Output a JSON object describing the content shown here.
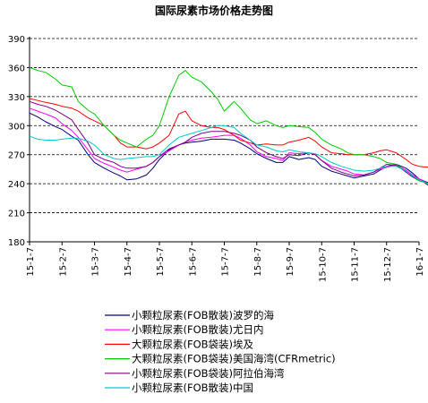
{
  "chart_data": {
    "type": "line",
    "title": "国际尿素市场价格走势图",
    "xlabel": "",
    "ylabel": "",
    "ylim": [
      180,
      390
    ],
    "yticks": [
      180,
      210,
      240,
      270,
      300,
      330,
      360,
      390
    ],
    "grid": "horizontal dashed",
    "legend_position": "bottom",
    "x_tick_labels": [
      "15-1-7",
      "15-2-7",
      "15-3-7",
      "15-4-7",
      "15-5-7",
      "15-6-7",
      "15-7-7",
      "15-8-7",
      "15-9-7",
      "15-10-7",
      "15-11-7",
      "15-12-7",
      "16-1-7"
    ],
    "series": [
      {
        "name": "小颗粒尿素(FOB散装)波罗的海",
        "color": "#000080",
        "points": [
          [
            0,
            313
          ],
          [
            0.25,
            309
          ],
          [
            0.5,
            304
          ],
          [
            0.8,
            299
          ],
          [
            1,
            296
          ],
          [
            1.3,
            289
          ],
          [
            1.5,
            285
          ],
          [
            1.8,
            270
          ],
          [
            2,
            262
          ],
          [
            2.3,
            256
          ],
          [
            2.6,
            251
          ],
          [
            2.8,
            248
          ],
          [
            3,
            244
          ],
          [
            3.3,
            245
          ],
          [
            3.6,
            249
          ],
          [
            3.8,
            256
          ],
          [
            4,
            265
          ],
          [
            4.3,
            275
          ],
          [
            4.6,
            280
          ],
          [
            4.8,
            282
          ],
          [
            5,
            283
          ],
          [
            5.3,
            284
          ],
          [
            5.6,
            286
          ],
          [
            5.8,
            286
          ],
          [
            6,
            286
          ],
          [
            6.3,
            285
          ],
          [
            6.5,
            282
          ],
          [
            6.8,
            276
          ],
          [
            7,
            271
          ],
          [
            7.3,
            266
          ],
          [
            7.6,
            262
          ],
          [
            7.8,
            262
          ],
          [
            8,
            268
          ],
          [
            8.3,
            265
          ],
          [
            8.6,
            267
          ],
          [
            8.8,
            265
          ],
          [
            9,
            258
          ],
          [
            9.3,
            253
          ],
          [
            9.6,
            250
          ],
          [
            9.8,
            248
          ],
          [
            10,
            246
          ],
          [
            10.3,
            248
          ],
          [
            10.6,
            250
          ],
          [
            10.8,
            254
          ],
          [
            11,
            258
          ],
          [
            11.3,
            260
          ],
          [
            11.6,
            256
          ],
          [
            11.8,
            251
          ],
          [
            12,
            245
          ],
          [
            12.3,
            238
          ],
          [
            12.6,
            232
          ],
          [
            12.8,
            229
          ],
          [
            13,
            225
          ]
        ]
      },
      {
        "name": "小颗粒尿素(FOB散装)尤日内",
        "color": "#ff00ff",
        "points": [
          [
            0,
            318
          ],
          [
            0.25,
            315
          ],
          [
            0.5,
            312
          ],
          [
            0.8,
            308
          ],
          [
            1,
            302
          ],
          [
            1.3,
            295
          ],
          [
            1.5,
            288
          ],
          [
            1.8,
            275
          ],
          [
            2,
            266
          ],
          [
            2.3,
            261
          ],
          [
            2.6,
            257
          ],
          [
            2.8,
            254
          ],
          [
            3,
            252
          ],
          [
            3.3,
            255
          ],
          [
            3.6,
            258
          ],
          [
            3.8,
            262
          ],
          [
            4,
            268
          ],
          [
            4.3,
            274
          ],
          [
            4.6,
            280
          ],
          [
            4.8,
            283
          ],
          [
            5,
            285
          ],
          [
            5.3,
            287
          ],
          [
            5.6,
            288
          ],
          [
            5.8,
            289
          ],
          [
            6,
            290
          ],
          [
            6.3,
            290
          ],
          [
            6.5,
            287
          ],
          [
            6.8,
            280
          ],
          [
            7,
            273
          ],
          [
            7.3,
            268
          ],
          [
            7.6,
            266
          ],
          [
            7.8,
            264
          ],
          [
            8,
            272
          ],
          [
            8.3,
            271
          ],
          [
            8.6,
            272
          ],
          [
            8.8,
            270
          ],
          [
            9,
            264
          ],
          [
            9.3,
            258
          ],
          [
            9.6,
            255
          ],
          [
            9.8,
            253
          ],
          [
            10,
            250
          ],
          [
            10.3,
            249
          ],
          [
            10.6,
            252
          ],
          [
            10.8,
            255
          ],
          [
            11,
            257
          ],
          [
            11.3,
            259
          ],
          [
            11.6,
            254
          ],
          [
            11.8,
            249
          ],
          [
            12,
            245
          ],
          [
            12.3,
            241
          ],
          [
            12.6,
            236
          ],
          [
            12.8,
            233
          ],
          [
            13,
            228
          ]
        ]
      },
      {
        "name": "大颗粒尿素(FOB袋装)埃及",
        "color": "#ff0000",
        "points": [
          [
            0,
            328
          ],
          [
            0.25,
            326
          ],
          [
            0.5,
            324
          ],
          [
            0.8,
            322
          ],
          [
            1,
            320
          ],
          [
            1.3,
            318
          ],
          [
            1.5,
            315
          ],
          [
            1.8,
            308
          ],
          [
            2,
            305
          ],
          [
            2.3,
            300
          ],
          [
            2.6,
            290
          ],
          [
            2.8,
            282
          ],
          [
            3,
            278
          ],
          [
            3.3,
            278
          ],
          [
            3.6,
            276
          ],
          [
            3.8,
            278
          ],
          [
            4,
            282
          ],
          [
            4.3,
            290
          ],
          [
            4.6,
            312
          ],
          [
            4.8,
            315
          ],
          [
            5,
            305
          ],
          [
            5.3,
            300
          ],
          [
            5.6,
            298
          ],
          [
            5.8,
            298
          ],
          [
            6,
            296
          ],
          [
            6.3,
            290
          ],
          [
            6.5,
            285
          ],
          [
            6.8,
            282
          ],
          [
            7,
            280
          ],
          [
            7.3,
            281
          ],
          [
            7.6,
            280
          ],
          [
            7.8,
            280
          ],
          [
            8,
            283
          ],
          [
            8.3,
            285
          ],
          [
            8.6,
            288
          ],
          [
            8.8,
            284
          ],
          [
            9,
            278
          ],
          [
            9.3,
            272
          ],
          [
            9.6,
            271
          ],
          [
            9.8,
            270
          ],
          [
            10,
            270
          ],
          [
            10.3,
            270
          ],
          [
            10.6,
            272
          ],
          [
            10.8,
            274
          ],
          [
            11,
            275
          ],
          [
            11.3,
            272
          ],
          [
            11.6,
            265
          ],
          [
            11.8,
            260
          ],
          [
            12,
            258
          ],
          [
            12.3,
            257
          ],
          [
            12.6,
            254
          ],
          [
            12.8,
            252
          ],
          [
            13,
            250
          ]
        ]
      },
      {
        "name": "大颗粒尿素(FOB袋装)美国海湾(CFRmetric)",
        "color": "#00cc00",
        "points": [
          [
            0,
            360
          ],
          [
            0.25,
            357
          ],
          [
            0.5,
            355
          ],
          [
            0.8,
            348
          ],
          [
            1,
            342
          ],
          [
            1.3,
            340
          ],
          [
            1.5,
            325
          ],
          [
            1.8,
            316
          ],
          [
            2,
            312
          ],
          [
            2.3,
            300
          ],
          [
            2.6,
            290
          ],
          [
            2.8,
            285
          ],
          [
            3,
            282
          ],
          [
            3.3,
            278
          ],
          [
            3.6,
            286
          ],
          [
            3.8,
            290
          ],
          [
            4,
            300
          ],
          [
            4.3,
            330
          ],
          [
            4.6,
            352
          ],
          [
            4.8,
            357
          ],
          [
            5,
            350
          ],
          [
            5.3,
            345
          ],
          [
            5.6,
            335
          ],
          [
            5.8,
            327
          ],
          [
            6,
            315
          ],
          [
            6.3,
            325
          ],
          [
            6.5,
            318
          ],
          [
            6.8,
            306
          ],
          [
            7,
            302
          ],
          [
            7.3,
            305
          ],
          [
            7.6,
            300
          ],
          [
            7.8,
            298
          ],
          [
            8,
            300
          ],
          [
            8.3,
            299
          ],
          [
            8.6,
            298
          ],
          [
            8.8,
            293
          ],
          [
            9,
            286
          ],
          [
            9.3,
            280
          ],
          [
            9.6,
            276
          ],
          [
            9.8,
            272
          ],
          [
            10,
            270
          ],
          [
            10.3,
            270
          ],
          [
            10.6,
            268
          ],
          [
            10.8,
            266
          ],
          [
            11,
            262
          ],
          [
            11.3,
            260
          ],
          [
            11.6,
            252
          ],
          [
            11.8,
            247
          ],
          [
            12,
            243
          ],
          [
            12.3,
            240
          ],
          [
            12.6,
            236
          ],
          [
            12.8,
            228
          ],
          [
            13,
            218
          ]
        ]
      },
      {
        "name": "小颗粒尿素(FOB袋装)阿拉伯海湾",
        "color": "#800080",
        "points": [
          [
            0,
            325
          ],
          [
            0.25,
            322
          ],
          [
            0.5,
            320
          ],
          [
            0.8,
            316
          ],
          [
            1,
            312
          ],
          [
            1.3,
            306
          ],
          [
            1.5,
            296
          ],
          [
            1.8,
            282
          ],
          [
            2,
            270
          ],
          [
            2.3,
            265
          ],
          [
            2.6,
            262
          ],
          [
            2.8,
            258
          ],
          [
            3,
            256
          ],
          [
            3.3,
            256
          ],
          [
            3.6,
            258
          ],
          [
            3.8,
            262
          ],
          [
            4,
            268
          ],
          [
            4.3,
            276
          ],
          [
            4.6,
            280
          ],
          [
            4.8,
            283
          ],
          [
            5,
            288
          ],
          [
            5.3,
            292
          ],
          [
            5.6,
            294
          ],
          [
            5.8,
            294
          ],
          [
            6,
            294
          ],
          [
            6.3,
            292
          ],
          [
            6.5,
            290
          ],
          [
            6.8,
            285
          ],
          [
            7,
            278
          ],
          [
            7.3,
            272
          ],
          [
            7.6,
            268
          ],
          [
            7.8,
            266
          ],
          [
            8,
            270
          ],
          [
            8.3,
            269
          ],
          [
            8.6,
            272
          ],
          [
            8.8,
            270
          ],
          [
            9,
            264
          ],
          [
            9.3,
            256
          ],
          [
            9.6,
            252
          ],
          [
            9.8,
            250
          ],
          [
            10,
            248
          ],
          [
            10.3,
            249
          ],
          [
            10.6,
            252
          ],
          [
            10.8,
            256
          ],
          [
            11,
            260
          ],
          [
            11.3,
            259
          ],
          [
            11.6,
            252
          ],
          [
            11.8,
            247
          ],
          [
            12,
            244
          ],
          [
            12.3,
            241
          ],
          [
            12.6,
            240
          ],
          [
            12.8,
            235
          ],
          [
            13,
            230
          ]
        ]
      },
      {
        "name": "小颗粒尿素(FOB散装)中国",
        "color": "#00cccc",
        "points": [
          [
            0,
            289
          ],
          [
            0.25,
            286
          ],
          [
            0.5,
            285
          ],
          [
            0.8,
            285
          ],
          [
            1,
            286
          ],
          [
            1.3,
            287
          ],
          [
            1.5,
            287
          ],
          [
            1.8,
            284
          ],
          [
            2,
            280
          ],
          [
            2.3,
            270
          ],
          [
            2.6,
            266
          ],
          [
            2.8,
            265
          ],
          [
            3,
            266
          ],
          [
            3.3,
            267
          ],
          [
            3.6,
            268
          ],
          [
            3.8,
            268
          ],
          [
            4,
            270
          ],
          [
            4.3,
            280
          ],
          [
            4.6,
            288
          ],
          [
            4.8,
            290
          ],
          [
            5,
            292
          ],
          [
            5.3,
            295
          ],
          [
            5.6,
            298
          ],
          [
            5.8,
            300
          ],
          [
            6,
            300
          ],
          [
            6.3,
            298
          ],
          [
            6.5,
            292
          ],
          [
            6.8,
            285
          ],
          [
            7,
            280
          ],
          [
            7.3,
            278
          ],
          [
            7.6,
            274
          ],
          [
            7.8,
            273
          ],
          [
            8,
            275
          ],
          [
            8.3,
            273
          ],
          [
            8.6,
            272
          ],
          [
            8.8,
            271
          ],
          [
            9,
            268
          ],
          [
            9.3,
            262
          ],
          [
            9.6,
            258
          ],
          [
            9.8,
            256
          ],
          [
            10,
            254
          ],
          [
            10.3,
            253
          ],
          [
            10.6,
            254
          ],
          [
            10.8,
            256
          ],
          [
            11,
            258
          ],
          [
            11.3,
            258
          ],
          [
            11.6,
            253
          ],
          [
            11.8,
            248
          ],
          [
            12,
            244
          ],
          [
            12.3,
            240
          ],
          [
            12.6,
            238
          ],
          [
            12.8,
            235
          ],
          [
            13,
            232
          ]
        ]
      }
    ]
  }
}
